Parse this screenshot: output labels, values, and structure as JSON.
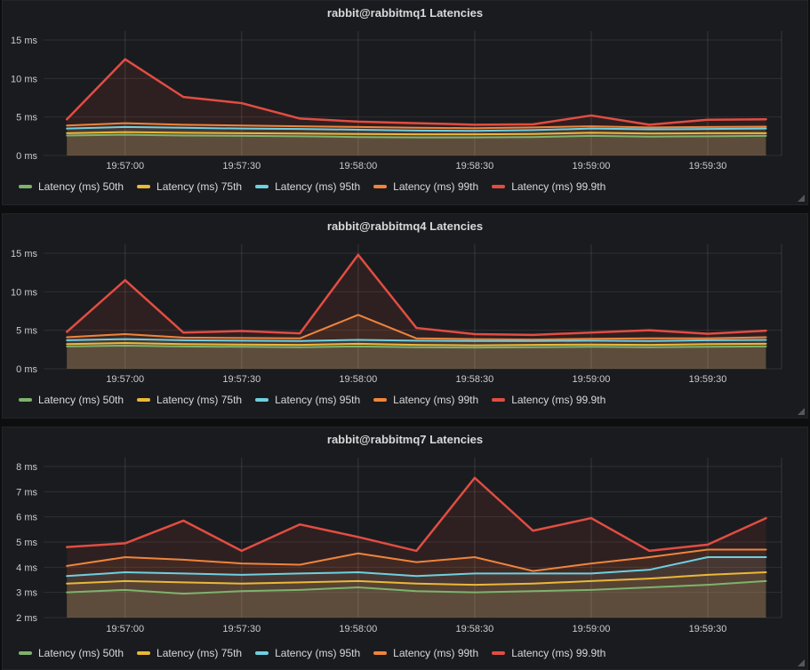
{
  "colors": {
    "page_bg": "#0d0e10",
    "panel_bg": "#1a1b1e",
    "title_text": "#d8d9da",
    "tick_text": "#c9cacb",
    "grid": "rgba(255,255,255,0.10)",
    "series_50th": "#7EB26D",
    "series_75th": "#EAB839",
    "series_95th": "#6ED0E0",
    "series_99th": "#EF843C",
    "series_999th": "#E24D42"
  },
  "legend": {
    "items": [
      {
        "label": "Latency (ms) 50th",
        "color": "#7EB26D"
      },
      {
        "label": "Latency (ms) 75th",
        "color": "#EAB839"
      },
      {
        "label": "Latency (ms) 95th",
        "color": "#6ED0E0"
      },
      {
        "label": "Latency (ms) 99th",
        "color": "#EF843C"
      },
      {
        "label": "Latency (ms) 99.9th",
        "color": "#E24D42"
      }
    ]
  },
  "chart_data": [
    {
      "type": "area",
      "title": "rabbit@rabbitmq1 Latencies",
      "ylabel": "ms",
      "ylim": [
        0,
        15
      ],
      "grid": true,
      "legend_position": "bottom",
      "yticks": [
        {
          "label": "15 ms",
          "value": 15
        },
        {
          "label": "10 ms",
          "value": 10
        },
        {
          "label": "5 ms",
          "value": 5
        },
        {
          "label": "0 ms",
          "value": 0
        }
      ],
      "xticks": [
        "19:57:00",
        "19:57:30",
        "19:58:00",
        "19:58:30",
        "19:59:00",
        "19:59:30"
      ],
      "x_times": [
        "19:56:45",
        "19:57:00",
        "19:57:15",
        "19:57:30",
        "19:57:45",
        "19:58:00",
        "19:58:15",
        "19:58:30",
        "19:58:45",
        "19:59:00",
        "19:59:15",
        "19:59:30",
        "19:59:45"
      ],
      "series": [
        {
          "name": "Latency (ms) 50th",
          "color": "#7EB26D",
          "values": [
            2.6,
            2.7,
            2.6,
            2.55,
            2.5,
            2.4,
            2.35,
            2.35,
            2.4,
            2.55,
            2.45,
            2.5,
            2.55
          ]
        },
        {
          "name": "Latency (ms) 75th",
          "color": "#EAB839",
          "values": [
            2.9,
            3.05,
            2.95,
            2.9,
            2.85,
            2.8,
            2.75,
            2.75,
            2.8,
            2.95,
            2.85,
            2.9,
            2.9
          ]
        },
        {
          "name": "Latency (ms) 95th",
          "color": "#6ED0E0",
          "values": [
            3.5,
            3.7,
            3.6,
            3.5,
            3.45,
            3.35,
            3.25,
            3.2,
            3.3,
            3.5,
            3.4,
            3.45,
            3.5
          ]
        },
        {
          "name": "Latency (ms) 99th",
          "color": "#EF843C",
          "values": [
            3.9,
            4.2,
            4.0,
            3.9,
            3.8,
            3.7,
            3.6,
            3.55,
            3.65,
            3.8,
            3.65,
            3.7,
            3.75
          ]
        },
        {
          "name": "Latency (ms) 99.9th",
          "color": "#E24D42",
          "values": [
            4.7,
            12.5,
            7.6,
            6.8,
            4.8,
            4.4,
            4.2,
            4.0,
            4.05,
            5.2,
            4.0,
            4.65,
            4.7
          ]
        }
      ]
    },
    {
      "type": "area",
      "title": "rabbit@rabbitmq4 Latencies",
      "ylabel": "ms",
      "ylim": [
        0,
        15
      ],
      "grid": true,
      "legend_position": "bottom",
      "yticks": [
        {
          "label": "15 ms",
          "value": 15
        },
        {
          "label": "10 ms",
          "value": 10
        },
        {
          "label": "5 ms",
          "value": 5
        },
        {
          "label": "0 ms",
          "value": 0
        }
      ],
      "xticks": [
        "19:57:00",
        "19:57:30",
        "19:58:00",
        "19:58:30",
        "19:59:00",
        "19:59:30"
      ],
      "x_times": [
        "19:56:45",
        "19:57:00",
        "19:57:15",
        "19:57:30",
        "19:57:45",
        "19:58:00",
        "19:58:15",
        "19:58:30",
        "19:58:45",
        "19:59:00",
        "19:59:15",
        "19:59:30",
        "19:59:45"
      ],
      "series": [
        {
          "name": "Latency (ms) 50th",
          "color": "#7EB26D",
          "values": [
            2.9,
            3.0,
            2.9,
            2.85,
            2.8,
            2.9,
            2.8,
            2.75,
            2.8,
            2.85,
            2.8,
            2.85,
            2.9
          ]
        },
        {
          "name": "Latency (ms) 75th",
          "color": "#EAB839",
          "values": [
            3.2,
            3.35,
            3.2,
            3.15,
            3.1,
            3.25,
            3.1,
            3.05,
            3.1,
            3.15,
            3.1,
            3.2,
            3.25
          ]
        },
        {
          "name": "Latency (ms) 95th",
          "color": "#6ED0E0",
          "values": [
            3.7,
            3.85,
            3.7,
            3.65,
            3.6,
            3.75,
            3.65,
            3.6,
            3.6,
            3.65,
            3.6,
            3.7,
            3.75
          ]
        },
        {
          "name": "Latency (ms) 99th",
          "color": "#EF843C",
          "values": [
            4.1,
            4.5,
            4.05,
            4.0,
            3.95,
            7.0,
            3.95,
            3.85,
            3.8,
            3.9,
            3.95,
            3.95,
            4.1
          ]
        },
        {
          "name": "Latency (ms) 99.9th",
          "color": "#E24D42",
          "values": [
            4.8,
            11.5,
            4.7,
            4.9,
            4.6,
            14.8,
            5.3,
            4.5,
            4.4,
            4.7,
            5.0,
            4.55,
            4.95
          ]
        }
      ]
    },
    {
      "type": "area",
      "title": "rabbit@rabbitmq7 Latencies",
      "ylabel": "ms",
      "ylim": [
        2,
        8
      ],
      "grid": true,
      "legend_position": "bottom",
      "yticks": [
        {
          "label": "8 ms",
          "value": 8
        },
        {
          "label": "7 ms",
          "value": 7
        },
        {
          "label": "6 ms",
          "value": 6
        },
        {
          "label": "5 ms",
          "value": 5
        },
        {
          "label": "4 ms",
          "value": 4
        },
        {
          "label": "3 ms",
          "value": 3
        },
        {
          "label": "2 ms",
          "value": 2
        }
      ],
      "xticks": [
        "19:57:00",
        "19:57:30",
        "19:58:00",
        "19:58:30",
        "19:59:00",
        "19:59:30"
      ],
      "x_times": [
        "19:56:45",
        "19:57:00",
        "19:57:15",
        "19:57:30",
        "19:57:45",
        "19:58:00",
        "19:58:15",
        "19:58:30",
        "19:58:45",
        "19:59:00",
        "19:59:15",
        "19:59:30",
        "19:59:45"
      ],
      "series": [
        {
          "name": "Latency (ms) 50th",
          "color": "#7EB26D",
          "values": [
            3.0,
            3.1,
            2.95,
            3.05,
            3.1,
            3.2,
            3.05,
            3.0,
            3.05,
            3.1,
            3.2,
            3.3,
            3.45
          ]
        },
        {
          "name": "Latency (ms) 75th",
          "color": "#EAB839",
          "values": [
            3.35,
            3.45,
            3.4,
            3.35,
            3.4,
            3.45,
            3.35,
            3.3,
            3.35,
            3.45,
            3.55,
            3.7,
            3.8
          ]
        },
        {
          "name": "Latency (ms) 95th",
          "color": "#6ED0E0",
          "values": [
            3.65,
            3.8,
            3.75,
            3.7,
            3.75,
            3.8,
            3.65,
            3.75,
            3.75,
            3.75,
            3.9,
            4.4,
            4.4
          ]
        },
        {
          "name": "Latency (ms) 99th",
          "color": "#EF843C",
          "values": [
            4.05,
            4.4,
            4.3,
            4.15,
            4.1,
            4.55,
            4.2,
            4.4,
            3.85,
            4.15,
            4.4,
            4.7,
            4.7
          ]
        },
        {
          "name": "Latency (ms) 99.9th",
          "color": "#E24D42",
          "values": [
            4.8,
            4.95,
            5.85,
            4.65,
            5.7,
            5.2,
            4.65,
            7.55,
            5.45,
            5.95,
            4.65,
            4.9,
            5.95
          ]
        }
      ]
    }
  ]
}
